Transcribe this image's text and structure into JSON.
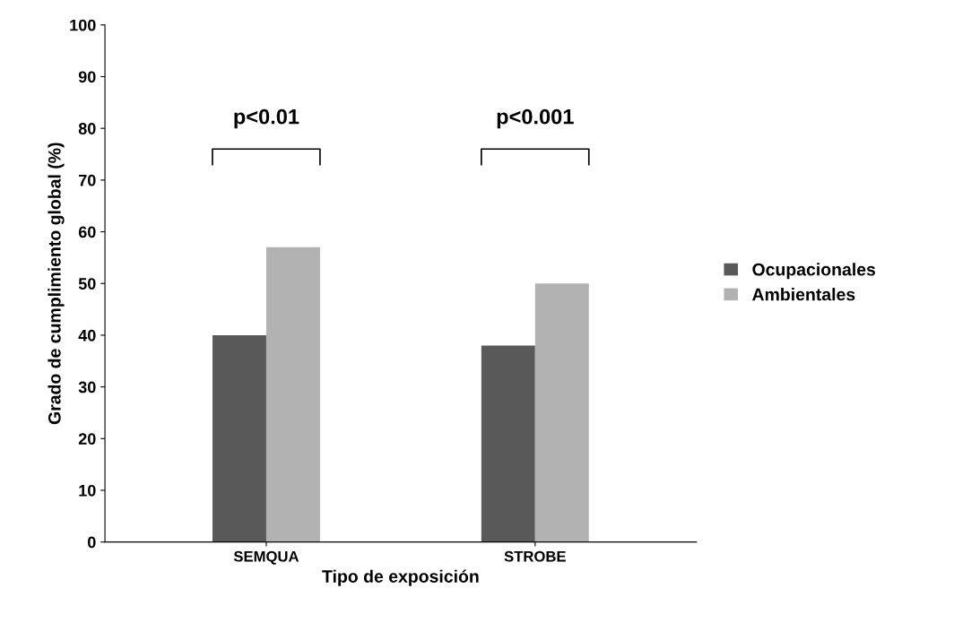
{
  "chart_data": {
    "type": "bar",
    "xlabel": "Tipo de exposición",
    "ylabel": "Grado de cumplimiento global (%)",
    "categories": [
      "SEMQUA",
      "STROBE"
    ],
    "series": [
      {
        "name": "Ocupacionales",
        "color": "#595959",
        "values": [
          40,
          38
        ]
      },
      {
        "name": "Ambientales",
        "color": "#b2b2b2",
        "values": [
          57,
          50
        ]
      }
    ],
    "ylim": [
      0,
      100
    ],
    "yticks": [
      0,
      10,
      20,
      30,
      40,
      50,
      60,
      70,
      80,
      90,
      100
    ],
    "annotations": [
      "p<0.01",
      "p<0.001"
    ],
    "grid": false,
    "legend": "right"
  }
}
